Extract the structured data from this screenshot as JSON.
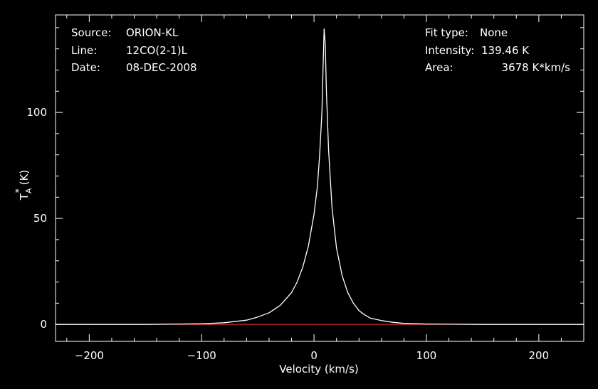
{
  "header": {
    "source_label": "Source:",
    "source_value": "ORION-KL",
    "line_label": "Line:",
    "line_value": "12CO(2-1)L",
    "date_label": "Date:",
    "date_value": "08-DEC-2008",
    "fit_label": "Fit type:",
    "fit_value": "None",
    "intensity_label": "Intensity:",
    "intensity_value": "139.46 K",
    "area_label": "Area:",
    "area_value": "3678 K*km/s"
  },
  "colors": {
    "background": "#000000",
    "frame": "#ffffff",
    "spectrum": "#ffffff",
    "baseline": "#ff3333"
  },
  "chart_data": {
    "type": "line",
    "xlabel": "Velocity (km/s)",
    "ylabel_main": "T",
    "ylabel_sub": "A",
    "ylabel_sup": "*",
    "ylabel_unit": " (K)",
    "xlim": [
      -230,
      240
    ],
    "ylim": [
      -8,
      146
    ],
    "xticks": [
      -200,
      -100,
      0,
      100,
      200
    ],
    "xtick_labels": [
      "−200",
      "−100",
      "0",
      "100",
      "200"
    ],
    "yticks": [
      0,
      50,
      100
    ],
    "ytick_labels": [
      "0",
      "50",
      "100"
    ],
    "baseline_y": 0,
    "grid": false,
    "series": [
      {
        "x": [
          -230,
          -150,
          -100,
          -80,
          -60,
          -50,
          -40,
          -30,
          -20,
          -15,
          -10,
          -5,
          0,
          3,
          5,
          7,
          8,
          9,
          10,
          11,
          13,
          16,
          20,
          25,
          30,
          35,
          40,
          45,
          50,
          60,
          70,
          80,
          100,
          150,
          240
        ],
        "y": [
          0,
          0,
          0.3,
          0.8,
          2,
          3.5,
          5.5,
          9,
          15,
          20,
          27,
          37,
          52,
          65,
          80,
          100,
          120,
          139.46,
          132,
          110,
          82,
          55,
          36,
          23,
          15,
          10,
          6.5,
          4.5,
          3,
          1.8,
          1,
          0.5,
          0.2,
          0,
          0
        ]
      }
    ]
  }
}
